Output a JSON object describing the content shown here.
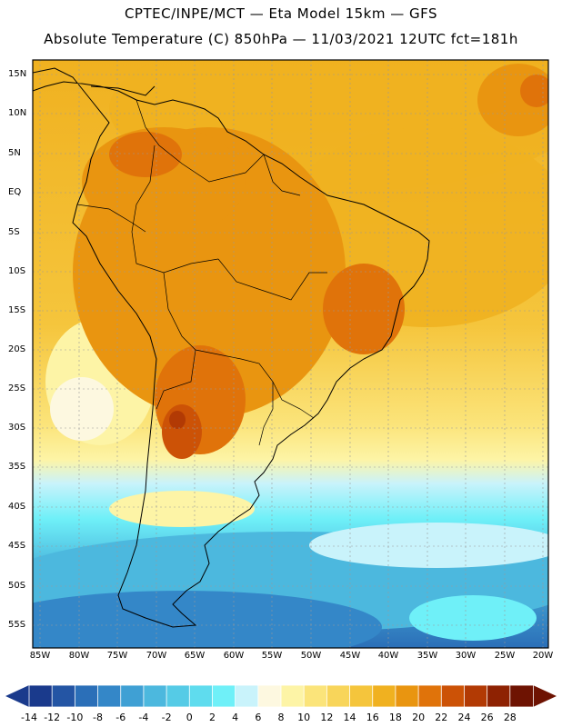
{
  "header": {
    "line1": "CPTEC/INPE/MCT —  Eta Model 15km — GFS",
    "line2": "Absolute Temperature (C) 850hPa — 11/03/2021 12UTC fct=181h"
  },
  "map": {
    "lat_labels": [
      "15N",
      "10N",
      "5N",
      "EQ",
      "5S",
      "10S",
      "15S",
      "20S",
      "25S",
      "30S",
      "35S",
      "40S",
      "45S",
      "50S",
      "55S"
    ],
    "lon_labels": [
      "85W",
      "80W",
      "75W",
      "70W",
      "65W",
      "60W",
      "55W",
      "50W",
      "45W",
      "40W",
      "35W",
      "30W",
      "25W",
      "20W"
    ],
    "colorbar": {
      "labels": [
        "-14",
        "-12",
        "-10",
        "-8",
        "-6",
        "-4",
        "-2",
        "0",
        "2",
        "4",
        "6",
        "8",
        "10",
        "12",
        "14",
        "16",
        "18",
        "20",
        "22",
        "24",
        "26",
        "28"
      ],
      "colors": [
        "#1a3a8c",
        "#2455a4",
        "#2b6fb8",
        "#3487c8",
        "#3fa0d4",
        "#4cb8de",
        "#55cbe6",
        "#5fdcee",
        "#6ff0f8",
        "#c9f3fb",
        "#fdf8e0",
        "#fdf4a6",
        "#fbe47a",
        "#f8d55a",
        "#f5c53c",
        "#f0b120",
        "#e99510",
        "#e0730a",
        "#cc5206",
        "#b23a04",
        "#8e2202",
        "#6e1302"
      ]
    }
  }
}
